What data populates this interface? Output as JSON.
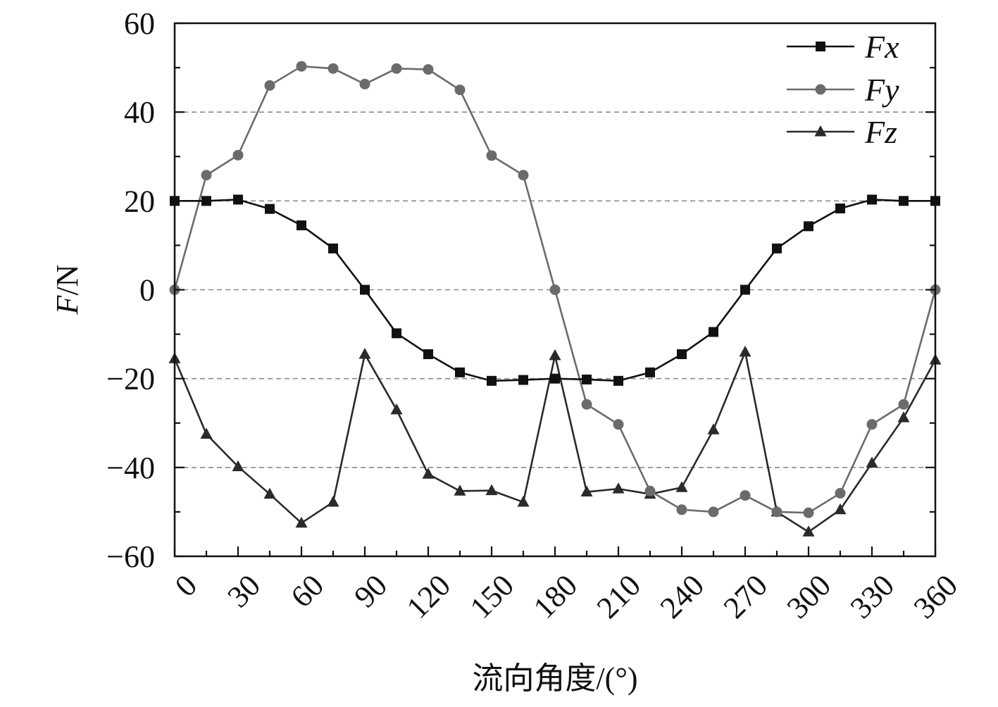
{
  "chart_data": {
    "type": "line",
    "x": [
      0,
      15,
      30,
      45,
      60,
      75,
      90,
      105,
      120,
      135,
      150,
      165,
      180,
      195,
      210,
      225,
      240,
      255,
      270,
      285,
      300,
      315,
      330,
      345,
      360
    ],
    "series": [
      {
        "name": "Fx",
        "color": "#111111",
        "marker": "square",
        "values": [
          20,
          20,
          20.3,
          18.2,
          14.5,
          9.3,
          0,
          -9.8,
          -14.5,
          -18.6,
          -20.5,
          -20.3,
          -20,
          -20.2,
          -20.5,
          -18.6,
          -14.5,
          -9.5,
          0,
          9.3,
          14.3,
          18.3,
          20.3,
          20,
          20
        ]
      },
      {
        "name": "Fy",
        "color": "#6b6b6b",
        "marker": "circle",
        "values": [
          0,
          25.8,
          30.3,
          46,
          50.3,
          49.8,
          46.3,
          49.8,
          49.6,
          45,
          30.2,
          25.8,
          0,
          -25.8,
          -30.3,
          -45.3,
          -49.5,
          -50,
          -46.3,
          -50,
          -50.2,
          -45.8,
          -30.3,
          -25.8,
          0
        ]
      },
      {
        "name": "Fz",
        "color": "#2a2a2a",
        "marker": "triangle",
        "values": [
          -15.5,
          -32.5,
          -39.8,
          -46,
          -52.5,
          -47.8,
          -14.5,
          -27,
          -41.5,
          -45.3,
          -45.2,
          -47.8,
          -14.8,
          -45.5,
          -44.8,
          -46,
          -44.5,
          -31.5,
          -14,
          -50,
          -54.5,
          -49.5,
          -39,
          -28.8,
          -15.8
        ]
      }
    ],
    "x_ticks": [
      "0",
      "30",
      "60",
      "90",
      "120",
      "150",
      "180",
      "210",
      "240",
      "270",
      "300",
      "330",
      "360"
    ],
    "y_ticks": [
      "60",
      "40",
      "20",
      "0",
      "−20",
      "−40",
      "−60"
    ],
    "xlim": [
      0,
      360
    ],
    "ylim": [
      -60,
      60
    ],
    "xlabel": "流向角度/(°)",
    "ylabel_italic": "F",
    "ylabel_rest": "/N",
    "grid": "horizontal dashed at major y ticks",
    "legend": {
      "position": "top-right",
      "entries": [
        "Fx",
        "Fy",
        "Fz"
      ]
    }
  }
}
